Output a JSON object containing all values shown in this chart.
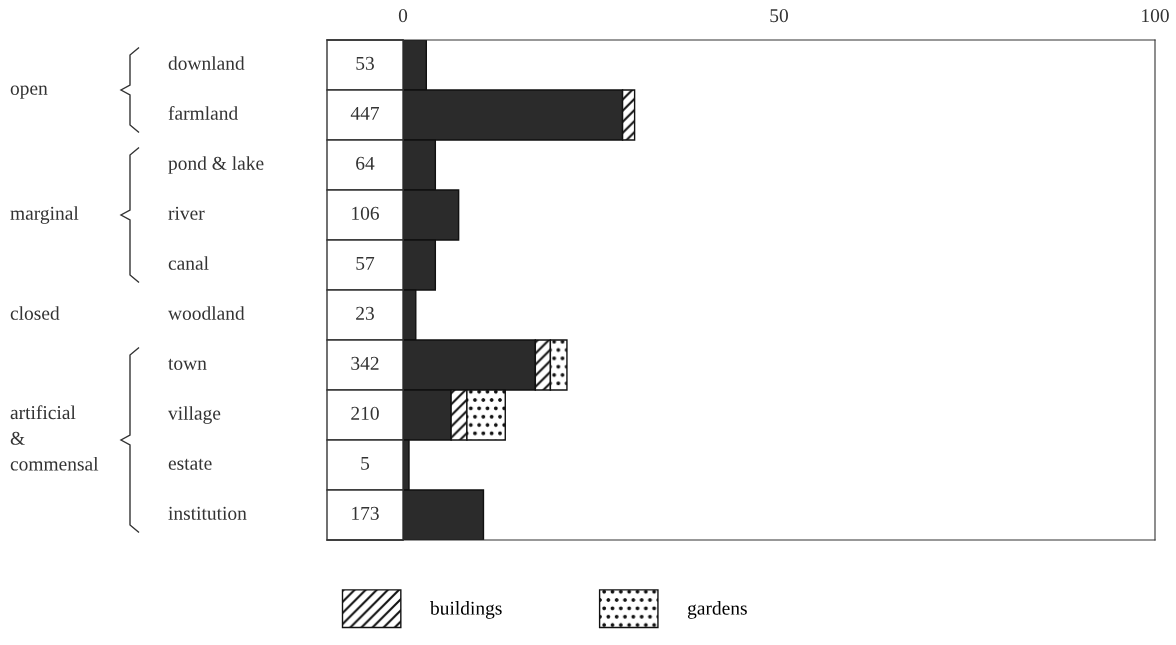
{
  "chart_data": {
    "type": "bar",
    "orientation": "horizontal",
    "stacked": true,
    "categories": [
      "downland",
      "farmland",
      "pond & lake",
      "river",
      "canal",
      "woodland",
      "town",
      "village",
      "estate",
      "institution"
    ],
    "series": [
      {
        "color": "#2b2b2b",
        "values": [
          3.1,
          29.2,
          4.3,
          7.4,
          4.3,
          1.7,
          17.6,
          6.4,
          0.8,
          10.7
        ]
      },
      {
        "name": "buildings",
        "color": "#111111",
        "values": [
          null,
          1.6,
          null,
          null,
          null,
          null,
          2.0,
          2.1,
          null,
          null
        ]
      },
      {
        "name": "gardens",
        "color": "#111111",
        "values": [
          null,
          null,
          null,
          null,
          null,
          null,
          2.2,
          5.1,
          null,
          null
        ]
      }
    ],
    "xlim": [
      0,
      100
    ],
    "xticks": [
      0,
      50,
      100
    ],
    "grid": false,
    "legend": "bottom",
    "annotations": [
      "53",
      "447",
      "64",
      "106",
      "57",
      "23",
      "342",
      "210",
      "5",
      "173",
      "open",
      "marginal",
      "closed",
      "artificial\n&\ncommensal"
    ]
  }
}
